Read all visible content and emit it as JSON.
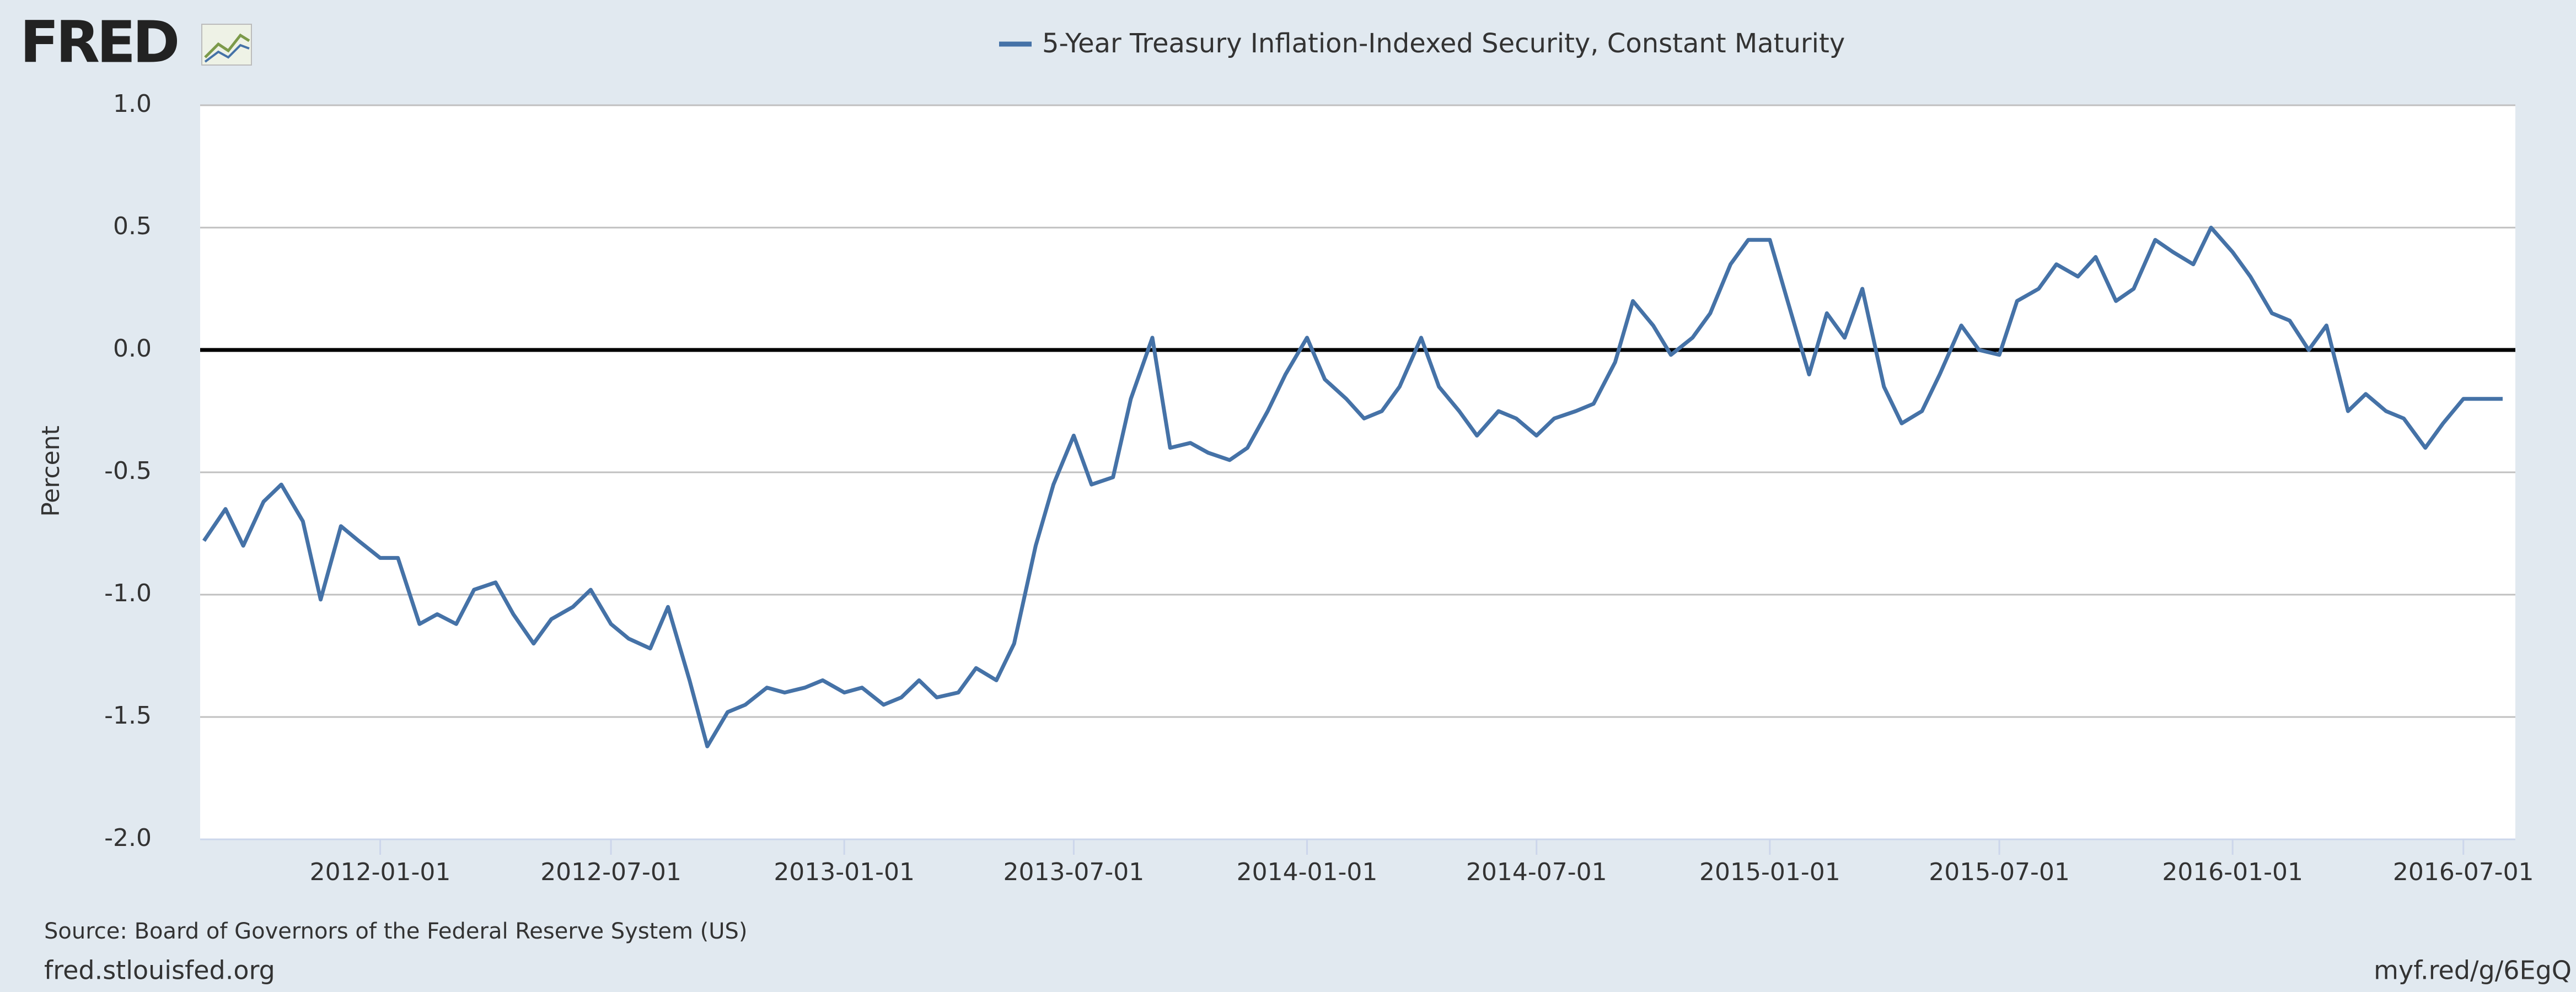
{
  "logo": "FRED",
  "chart_data": {
    "type": "line",
    "y_label": "Percent",
    "source": "Source: Board of Governors of the Federal Reserve System (US)",
    "footer_left": "fred.stlouisfed.org",
    "footer_right": "myf.red/g/6EgQ",
    "grid": true,
    "xlim": [
      "2011-08-12",
      "2016-08-11"
    ],
    "xticks": [
      "2012-01-01",
      "2012-07-01",
      "2013-01-01",
      "2013-07-01",
      "2014-01-01",
      "2014-07-01",
      "2015-01-01",
      "2015-07-01",
      "2016-01-01",
      "2016-07-01"
    ],
    "ylim": [
      -2,
      1
    ],
    "yticks": [
      {
        "value": 1,
        "label": "1.0"
      },
      0.5,
      {
        "value": 0,
        "label": "0.0"
      },
      -0.5,
      {
        "value": -1,
        "label": "-1.0"
      },
      -1.5,
      {
        "value": -2,
        "label": "-2.0"
      }
    ],
    "x": [
      "2011-08-15",
      "2011-09-01",
      "2011-09-15",
      "2011-10-01",
      "2011-10-15",
      "2011-11-01",
      "2011-11-15",
      "2011-12-01",
      "2011-12-15",
      "2012-01-01",
      "2012-01-15",
      "2012-02-01",
      "2012-02-15",
      "2012-03-01",
      "2012-03-15",
      "2012-04-01",
      "2012-04-15",
      "2012-05-01",
      "2012-05-15",
      "2012-06-01",
      "2012-06-15",
      "2012-07-01",
      "2012-07-15",
      "2012-08-01",
      "2012-08-15",
      "2012-09-01",
      "2012-09-15",
      "2012-10-01",
      "2012-10-15",
      "2012-11-01",
      "2012-11-15",
      "2012-12-01",
      "2012-12-15",
      "2013-01-01",
      "2013-01-15",
      "2013-02-01",
      "2013-02-15",
      "2013-03-01",
      "2013-03-15",
      "2013-04-01",
      "2013-04-15",
      "2013-05-01",
      "2013-05-15",
      "2013-06-01",
      "2013-06-15",
      "2013-07-01",
      "2013-07-15",
      "2013-08-01",
      "2013-08-15",
      "2013-09-01",
      "2013-09-15",
      "2013-10-01",
      "2013-10-15",
      "2013-11-01",
      "2013-11-15",
      "2013-12-01",
      "2013-12-15",
      "2014-01-01",
      "2014-01-15",
      "2014-02-01",
      "2014-02-15",
      "2014-03-01",
      "2014-03-15",
      "2014-04-01",
      "2014-04-15",
      "2014-05-01",
      "2014-05-15",
      "2014-06-01",
      "2014-06-15",
      "2014-07-01",
      "2014-07-15",
      "2014-08-01",
      "2014-08-15",
      "2014-09-01",
      "2014-09-15",
      "2014-10-01",
      "2014-10-15",
      "2014-11-01",
      "2014-11-15",
      "2014-12-01",
      "2014-12-15",
      "2015-01-01",
      "2015-01-15",
      "2015-02-01",
      "2015-02-15",
      "2015-03-01",
      "2015-03-15",
      "2015-04-01",
      "2015-04-15",
      "2015-05-01",
      "2015-05-15",
      "2015-06-01",
      "2015-06-15",
      "2015-07-01",
      "2015-07-15",
      "2015-08-01",
      "2015-08-15",
      "2015-09-01",
      "2015-09-15",
      "2015-10-01",
      "2015-10-15",
      "2015-11-01",
      "2015-11-15",
      "2015-12-01",
      "2015-12-15",
      "2016-01-01",
      "2016-01-15",
      "2016-02-01",
      "2016-02-15",
      "2016-03-01",
      "2016-03-15",
      "2016-04-01",
      "2016-04-15",
      "2016-05-01",
      "2016-05-15",
      "2016-06-01",
      "2016-06-15",
      "2016-07-01",
      "2016-07-15",
      "2016-08-01"
    ],
    "series": [
      {
        "name": "5-Year Treasury Inflation-Indexed Security, Constant Maturity",
        "color": "#4572a7",
        "values": [
          -0.78,
          -0.65,
          -0.8,
          -0.62,
          -0.55,
          -0.7,
          -1.02,
          -0.72,
          -0.78,
          -0.85,
          -0.85,
          -1.12,
          -1.08,
          -1.12,
          -0.98,
          -0.95,
          -1.08,
          -1.2,
          -1.1,
          -1.05,
          -0.98,
          -1.12,
          -1.18,
          -1.22,
          -1.05,
          -1.35,
          -1.62,
          -1.48,
          -1.45,
          -1.38,
          -1.4,
          -1.38,
          -1.35,
          -1.4,
          -1.38,
          -1.45,
          -1.42,
          -1.35,
          -1.42,
          -1.4,
          -1.3,
          -1.35,
          -1.2,
          -0.8,
          -0.55,
          -0.35,
          -0.55,
          -0.52,
          -0.2,
          0.05,
          -0.4,
          -0.38,
          -0.42,
          -0.45,
          -0.4,
          -0.25,
          -0.1,
          0.05,
          -0.12,
          -0.2,
          -0.28,
          -0.25,
          -0.15,
          0.05,
          -0.15,
          -0.25,
          -0.35,
          -0.25,
          -0.28,
          -0.35,
          -0.28,
          -0.25,
          -0.22,
          -0.05,
          0.2,
          0.1,
          -0.02,
          0.05,
          0.15,
          0.35,
          0.45,
          0.45,
          0.2,
          -0.1,
          0.15,
          0.05,
          0.25,
          -0.15,
          -0.3,
          -0.25,
          -0.1,
          0.1,
          0,
          -0.02,
          0.2,
          0.25,
          0.35,
          0.3,
          0.38,
          0.2,
          0.25,
          0.45,
          0.4,
          0.35,
          0.5,
          0.4,
          0.3,
          0.15,
          0.12,
          0,
          0.1,
          -0.25,
          -0.18,
          -0.25,
          -0.28,
          -0.4,
          -0.3,
          -0.2,
          -0.2,
          -0.2
        ]
      }
    ]
  }
}
